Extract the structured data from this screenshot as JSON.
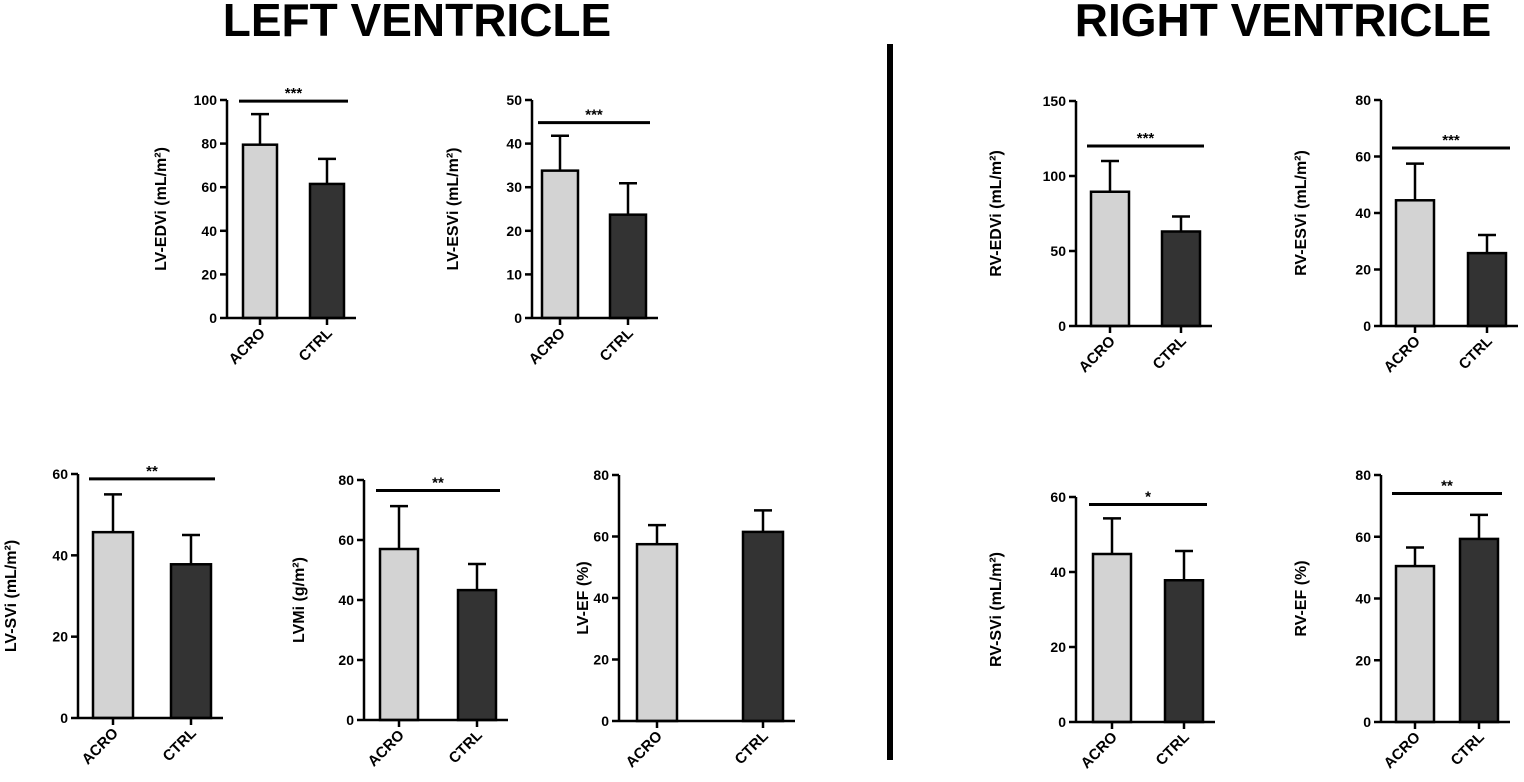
{
  "headings": {
    "left": "LEFT VENTRICLE",
    "right": "RIGHT VENTRICLE"
  },
  "colors": {
    "acro_bar": "#d3d3d3",
    "ctrl_bar": "#333333",
    "axis": "#000000"
  },
  "chart_data": [
    {
      "type": "bar",
      "ylabel": "LV-EDVi (mL/m²)",
      "categories": [
        "ACRO",
        "CTRL"
      ],
      "values": [
        79.5,
        61.5
      ],
      "errors": [
        14,
        11.5
      ],
      "ylim": [
        0,
        100
      ],
      "yticks": [
        0,
        20,
        40,
        60,
        80,
        100
      ],
      "significance": "***",
      "sig_level": 99.5
    },
    {
      "type": "bar",
      "ylabel": "LV-ESVi (mL/m²)",
      "categories": [
        "ACRO",
        "CTRL"
      ],
      "values": [
        33.8,
        23.7
      ],
      "errors": [
        8,
        7.2
      ],
      "ylim": [
        0,
        50
      ],
      "yticks": [
        0,
        10,
        20,
        30,
        40,
        50
      ],
      "significance": "***",
      "sig_level": 44.8
    },
    {
      "type": "bar",
      "ylabel": "LV-SVi (mL/m²)",
      "categories": [
        "ACRO",
        "CTRL"
      ],
      "values": [
        45.7,
        37.8
      ],
      "errors": [
        9.3,
        7.2
      ],
      "ylim": [
        0,
        60
      ],
      "yticks": [
        0,
        20,
        40,
        60
      ],
      "significance": "**",
      "sig_level": 58.8
    },
    {
      "type": "bar",
      "ylabel": "LVMi (g/m²)",
      "categories": [
        "ACRO",
        "CTRL"
      ],
      "values": [
        57,
        43.3
      ],
      "errors": [
        14.3,
        8.7
      ],
      "ylim": [
        0,
        80
      ],
      "yticks": [
        0,
        20,
        40,
        60,
        80
      ],
      "significance": "**",
      "sig_level": 76.5
    },
    {
      "type": "bar",
      "ylabel": "LV-EF (%)",
      "categories": [
        "ACRO",
        "CTRL"
      ],
      "values": [
        57.5,
        61.5
      ],
      "errors": [
        6.2,
        7
      ],
      "ylim": [
        0,
        80
      ],
      "yticks": [
        0,
        20,
        40,
        60,
        80
      ],
      "significance": "",
      "sig_level": 0
    },
    {
      "type": "bar",
      "ylabel": "RV-EDVi (mL/m²)",
      "categories": [
        "ACRO",
        "CTRL"
      ],
      "values": [
        89.5,
        63
      ],
      "errors": [
        20.5,
        10
      ],
      "ylim": [
        0,
        150
      ],
      "yticks": [
        0,
        50,
        100,
        150
      ],
      "significance": "***",
      "sig_level": 120
    },
    {
      "type": "bar",
      "ylabel": "RV-ESVi (mL/m²)",
      "categories": [
        "ACRO",
        "CTRL"
      ],
      "values": [
        44.5,
        25.8
      ],
      "errors": [
        13,
        6.4
      ],
      "ylim": [
        0,
        80
      ],
      "yticks": [
        0,
        20,
        40,
        60,
        80
      ],
      "significance": "***",
      "sig_level": 63
    },
    {
      "type": "bar",
      "ylabel": "RV-SVi (mL/m²)",
      "categories": [
        "ACRO",
        "CTRL"
      ],
      "values": [
        44.8,
        37.8
      ],
      "errors": [
        9.5,
        7.8
      ],
      "ylim": [
        0,
        60
      ],
      "yticks": [
        0,
        20,
        40,
        60
      ],
      "significance": "*",
      "sig_level": 58
    },
    {
      "type": "bar",
      "ylabel": "RV-EF (%)",
      "categories": [
        "ACRO",
        "CTRL"
      ],
      "values": [
        50.5,
        59.3
      ],
      "errors": [
        6,
        7.8
      ],
      "ylim": [
        0,
        80
      ],
      "yticks": [
        0,
        20,
        40,
        60,
        80
      ],
      "significance": "**",
      "sig_level": 74
    }
  ]
}
